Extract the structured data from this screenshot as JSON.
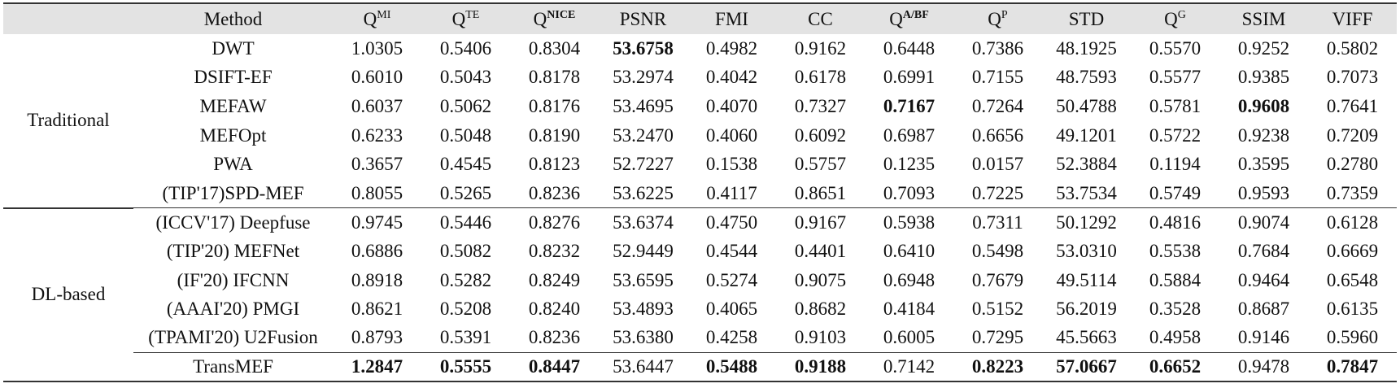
{
  "table": {
    "header": [
      "Method",
      {
        "text": "Q",
        "sup": "MI"
      },
      {
        "text": "Q",
        "sup": "TE"
      },
      {
        "text": "Q",
        "sup": "NICE",
        "sup_bold": true
      },
      "PSNR",
      "FMI",
      "CC",
      {
        "text": "Q",
        "sup": "A/BF",
        "sup_bold": true
      },
      {
        "text": "Q",
        "sup": "P"
      },
      "STD",
      {
        "text": "Q",
        "sup": "G"
      },
      "SSIM",
      "VIFF"
    ],
    "groups": [
      {
        "label": "Traditional",
        "rows": [
          {
            "method": "DWT",
            "values": [
              "1.0305",
              "0.5406",
              "0.8304",
              "53.6758",
              "0.4982",
              "0.9162",
              "0.6448",
              "0.7386",
              "48.1925",
              "0.5570",
              "0.9252",
              "0.5802"
            ],
            "bold": [
              3
            ]
          },
          {
            "method": "DSIFT-EF",
            "values": [
              "0.6010",
              "0.5043",
              "0.8178",
              "53.2974",
              "0.4042",
              "0.6178",
              "0.6991",
              "0.7155",
              "48.7593",
              "0.5577",
              "0.9385",
              "0.7073"
            ],
            "bold": []
          },
          {
            "method": "MEFAW",
            "values": [
              "0.6037",
              "0.5062",
              "0.8176",
              "53.4695",
              "0.4070",
              "0.7327",
              "0.7167",
              "0.7264",
              "50.4788",
              "0.5781",
              "0.9608",
              "0.7641"
            ],
            "bold": [
              6,
              10
            ]
          },
          {
            "method": "MEFOpt",
            "values": [
              "0.6233",
              "0.5048",
              "0.8190",
              "53.2470",
              "0.4060",
              "0.6092",
              "0.6987",
              "0.6656",
              "49.1201",
              "0.5722",
              "0.9238",
              "0.7209"
            ],
            "bold": []
          },
          {
            "method": "PWA",
            "values": [
              "0.3657",
              "0.4545",
              "0.8123",
              "52.7227",
              "0.1538",
              "0.5757",
              "0.1235",
              "0.0157",
              "52.3884",
              "0.1194",
              "0.3595",
              "0.2780"
            ],
            "bold": []
          },
          {
            "method": "(TIP'17)SPD-MEF",
            "values": [
              "0.8055",
              "0.5265",
              "0.8236",
              "53.6225",
              "0.4117",
              "0.8651",
              "0.7093",
              "0.7225",
              "53.7534",
              "0.5749",
              "0.9593",
              "0.7359"
            ],
            "bold": []
          }
        ]
      },
      {
        "label": "DL-based",
        "rows": [
          {
            "method": "(ICCV'17) Deepfuse",
            "values": [
              "0.9745",
              "0.5446",
              "0.8276",
              "53.6374",
              "0.4750",
              "0.9167",
              "0.5938",
              "0.7311",
              "50.1292",
              "0.4816",
              "0.9074",
              "0.6128"
            ],
            "bold": []
          },
          {
            "method": "(TIP'20) MEFNet",
            "values": [
              "0.6886",
              "0.5082",
              "0.8232",
              "52.9449",
              "0.4544",
              "0.4401",
              "0.6410",
              "0.5498",
              "53.0310",
              "0.5538",
              "0.7684",
              "0.6669"
            ],
            "bold": []
          },
          {
            "method": "(IF'20) IFCNN",
            "values": [
              "0.8918",
              "0.5282",
              "0.8249",
              "53.6595",
              "0.5274",
              "0.9075",
              "0.6948",
              "0.7679",
              "49.5114",
              "0.5884",
              "0.9464",
              "0.6548"
            ],
            "bold": []
          },
          {
            "method": "(AAAI'20) PMGI",
            "values": [
              "0.8621",
              "0.5208",
              "0.8240",
              "53.4893",
              "0.4065",
              "0.8682",
              "0.4184",
              "0.5152",
              "56.2019",
              "0.3528",
              "0.8687",
              "0.6135"
            ],
            "bold": []
          },
          {
            "method": "(TPAMI'20) U2Fusion",
            "values": [
              "0.8793",
              "0.5391",
              "0.8236",
              "53.6380",
              "0.4258",
              "0.9103",
              "0.6005",
              "0.7295",
              "45.5663",
              "0.4958",
              "0.9146",
              "0.5960"
            ],
            "bold": []
          },
          {
            "method": "TransMEF",
            "values": [
              "1.2847",
              "0.5555",
              "0.8447",
              "53.6447",
              "0.5488",
              "0.9188",
              "0.7142",
              "0.8223",
              "57.0667",
              "0.6652",
              "0.9478",
              "0.7847"
            ],
            "bold": [
              0,
              1,
              2,
              4,
              5,
              7,
              8,
              9,
              11
            ],
            "rule_above": true
          }
        ]
      }
    ]
  }
}
